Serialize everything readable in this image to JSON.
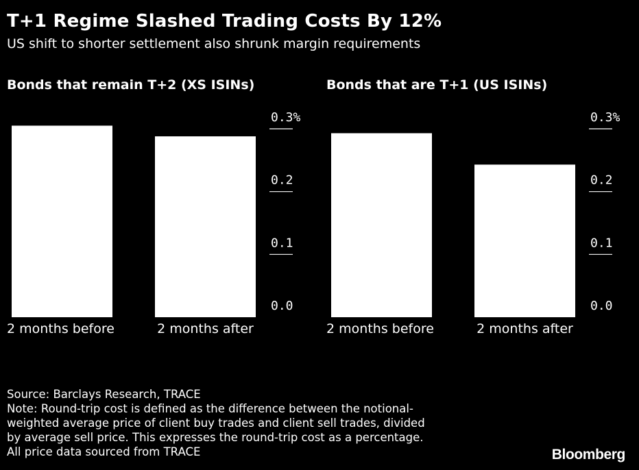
{
  "header": {
    "title": "T+1 Regime Slashed Trading Costs By 12%",
    "subtitle": "US shift to shorter settlement also shrunk margin requirements"
  },
  "chart_data": [
    {
      "type": "bar",
      "title": "Bonds that remain T+2 (XS ISINs)",
      "categories": [
        "2 months before",
        "2 months after"
      ],
      "values": [
        0.305,
        0.288
      ],
      "ylim": [
        0,
        0.3
      ],
      "yticks": [
        "0.0",
        "0.1",
        "0.2",
        "0.3%"
      ],
      "ytick_values": [
        0,
        0.1,
        0.2,
        0.3
      ],
      "axis_position": "right",
      "bar_color": "#ffffff"
    },
    {
      "type": "bar",
      "title": "Bonds that are T+1 (US ISINs)",
      "categories": [
        "2 months before",
        "2 months after"
      ],
      "values": [
        0.293,
        0.243
      ],
      "ylim": [
        0,
        0.3
      ],
      "yticks": [
        "0.0",
        "0.1",
        "0.2",
        "0.3%"
      ],
      "ytick_values": [
        0,
        0.1,
        0.2,
        0.3
      ],
      "axis_position": "right",
      "bar_color": "#ffffff"
    }
  ],
  "footer": {
    "source": "Source: Barclays Research, TRACE",
    "note_lines": [
      "Note: Round-trip cost is defined as the difference between the notional-",
      "weighted average price of client buy trades and client sell trades, divided",
      "by average sell price. This expresses the round-trip cost as a percentage.",
      "All price data sourced from TRACE"
    ]
  },
  "brand": {
    "logo_text": "Bloomberg"
  }
}
